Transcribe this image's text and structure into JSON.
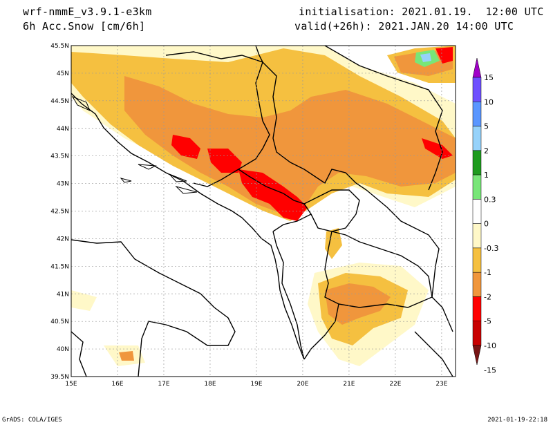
{
  "header": {
    "model": "wrf-nmmE_v3.9.1-e3km",
    "variable": "6h Acc.Snow [cm/6h]",
    "initialisation": "initialisation: 2021.01.19.  12:00 UTC",
    "valid": "valid(+26h): 2021.JAN.20 14:00 UTC"
  },
  "footer": {
    "left": "GrADS: COLA/IGES",
    "right": "2021-01-19-22:18"
  },
  "map": {
    "lon_ticks": [
      "15E",
      "16E",
      "17E",
      "18E",
      "19E",
      "20E",
      "21E",
      "22E",
      "23E"
    ],
    "lat_ticks": [
      "45.5N",
      "45N",
      "44.5N",
      "44N",
      "43.5N",
      "43N",
      "42.5N",
      "42N",
      "41.5N",
      "41N",
      "40.5N",
      "40N",
      "39.5N"
    ],
    "grid": true
  },
  "colorbar": {
    "labels": [
      "15",
      "10",
      "5",
      "2",
      "1",
      "0.3",
      "0",
      "-0.3",
      "-1",
      "-2",
      "-5",
      "-10",
      "-15"
    ],
    "colors": [
      "#a000c8",
      "#6e50ff",
      "#5a96ff",
      "#96d2fa",
      "#1e9b1e",
      "#78e678",
      "#ffffff",
      "#fff8c8",
      "#f5c040",
      "#f0963c",
      "#ff0000",
      "#c80000",
      "#781414"
    ]
  },
  "legend_colors": {
    "light": "#fff8c8",
    "yellow": "#f5c040",
    "orange": "#f0963c",
    "red": "#ff0000",
    "darkred": "#c80000",
    "green": "#78e678",
    "lightblue": "#96d2fa"
  }
}
